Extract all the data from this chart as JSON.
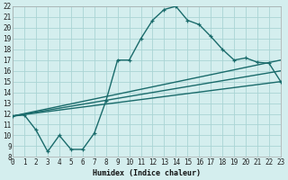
{
  "title": "",
  "xlabel": "Humidex (Indice chaleur)",
  "xlim": [
    0,
    23
  ],
  "ylim": [
    8,
    22
  ],
  "xticks": [
    0,
    1,
    2,
    3,
    4,
    5,
    6,
    7,
    8,
    9,
    10,
    11,
    12,
    13,
    14,
    15,
    16,
    17,
    18,
    19,
    20,
    21,
    22,
    23
  ],
  "yticks": [
    8,
    9,
    10,
    11,
    12,
    13,
    14,
    15,
    16,
    17,
    18,
    19,
    20,
    21,
    22
  ],
  "bg_color": "#d4eeee",
  "grid_color": "#aad4d4",
  "line_color": "#1a6b6b",
  "curve1_x": [
    0,
    1,
    2,
    3,
    4,
    5,
    6,
    7,
    8,
    9,
    10,
    11,
    12,
    13,
    14,
    15,
    16,
    17,
    18,
    19,
    20,
    21,
    22,
    23
  ],
  "curve1_y": [
    11.8,
    11.9,
    10.5,
    8.5,
    10.0,
    8.7,
    8.7,
    10.2,
    13.2,
    17.0,
    17.0,
    19.0,
    20.7,
    21.7,
    22.0,
    20.7,
    20.3,
    19.2,
    18.0,
    17.0,
    17.2,
    16.8,
    16.7,
    15.0
  ],
  "line1_x": [
    0,
    23
  ],
  "line1_y": [
    11.8,
    15.0
  ],
  "line2_x": [
    0,
    23
  ],
  "line2_y": [
    11.8,
    17.0
  ],
  "line3_x": [
    0,
    23
  ],
  "line3_y": [
    11.8,
    16.0
  ],
  "line_width": 1.0,
  "tick_fontsize": 5.5
}
